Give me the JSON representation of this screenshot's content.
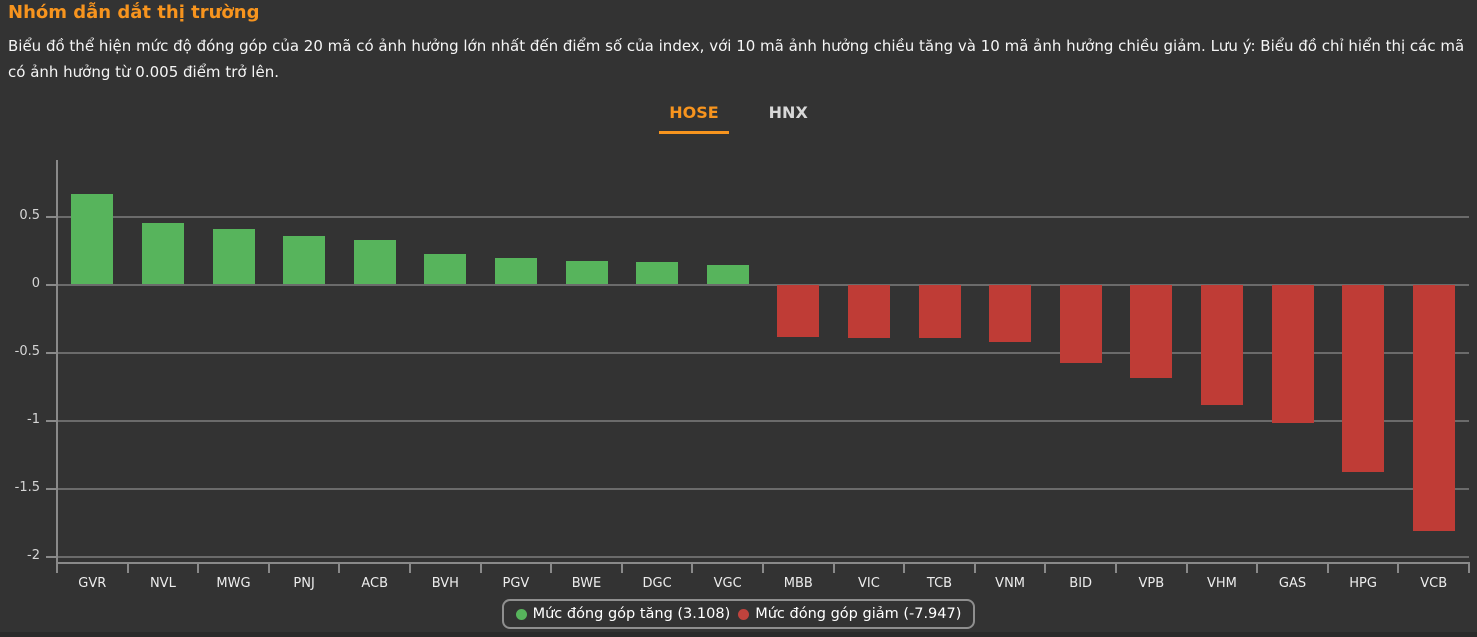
{
  "header": {
    "title": "Nhóm dẫn dắt thị trường",
    "description": "Biểu đồ thể hiện mức độ đóng góp của 20 mã có ảnh hưởng lớn nhất đến điểm số của index, với 10 mã ảnh hưởng chiều tăng và 10 mã ảnh hưởng chiều giảm. Lưu ý: Biểu đồ chỉ hiển thị các mã có ảnh hưởng từ 0.005 điểm trở lên."
  },
  "tabs": [
    {
      "label": "HOSE",
      "active": true
    },
    {
      "label": "HNX",
      "active": false
    }
  ],
  "legend": {
    "up": {
      "label": "Mức đóng góp tăng (3.108)",
      "color": "#57b45c"
    },
    "down": {
      "label": "Mức đóng góp giảm (-7.947)",
      "color": "#bf3c36"
    }
  },
  "colors": {
    "background": "#333333",
    "title": "#f7941e",
    "tab_active": "#f7941e",
    "tab_inactive": "#d8d8d8",
    "positive": "#57b45c",
    "negative": "#bf3c36",
    "grid": "#6b6b6b",
    "axis": "#8a8a8a",
    "text": "#ffffff"
  },
  "chart_data": {
    "type": "bar",
    "title": "Nhóm dẫn dắt thị trường",
    "categories": [
      "GVR",
      "NVL",
      "MWG",
      "PNJ",
      "ACB",
      "BVH",
      "PGV",
      "BWE",
      "DGC",
      "VGC",
      "MBB",
      "VIC",
      "TCB",
      "VNM",
      "BID",
      "VPB",
      "VHM",
      "GAS",
      "HPG",
      "VCB"
    ],
    "values": [
      0.665,
      0.45,
      0.405,
      0.36,
      0.325,
      0.225,
      0.198,
      0.17,
      0.165,
      0.145,
      -0.385,
      -0.39,
      -0.395,
      -0.425,
      -0.575,
      -0.69,
      -0.885,
      -1.015,
      -1.375,
      -1.812
    ],
    "series": [
      {
        "name": "Mức đóng góp tăng",
        "total": 3.108,
        "color": "#57b45c",
        "values": [
          0.665,
          0.45,
          0.405,
          0.36,
          0.325,
          0.225,
          0.198,
          0.17,
          0.165,
          0.145
        ]
      },
      {
        "name": "Mức đóng góp giảm",
        "total": -7.947,
        "color": "#bf3c36",
        "values": [
          -0.385,
          -0.39,
          -0.395,
          -0.425,
          -0.575,
          -0.69,
          -0.885,
          -1.015,
          -1.375,
          -1.812
        ]
      }
    ],
    "yticks": [
      0.5,
      0,
      -0.5,
      -1,
      -1.5,
      -2
    ],
    "ylim": [
      -2.05,
      0.92
    ],
    "xlabel": "",
    "ylabel": "",
    "grid": true,
    "legend_position": "bottom"
  }
}
